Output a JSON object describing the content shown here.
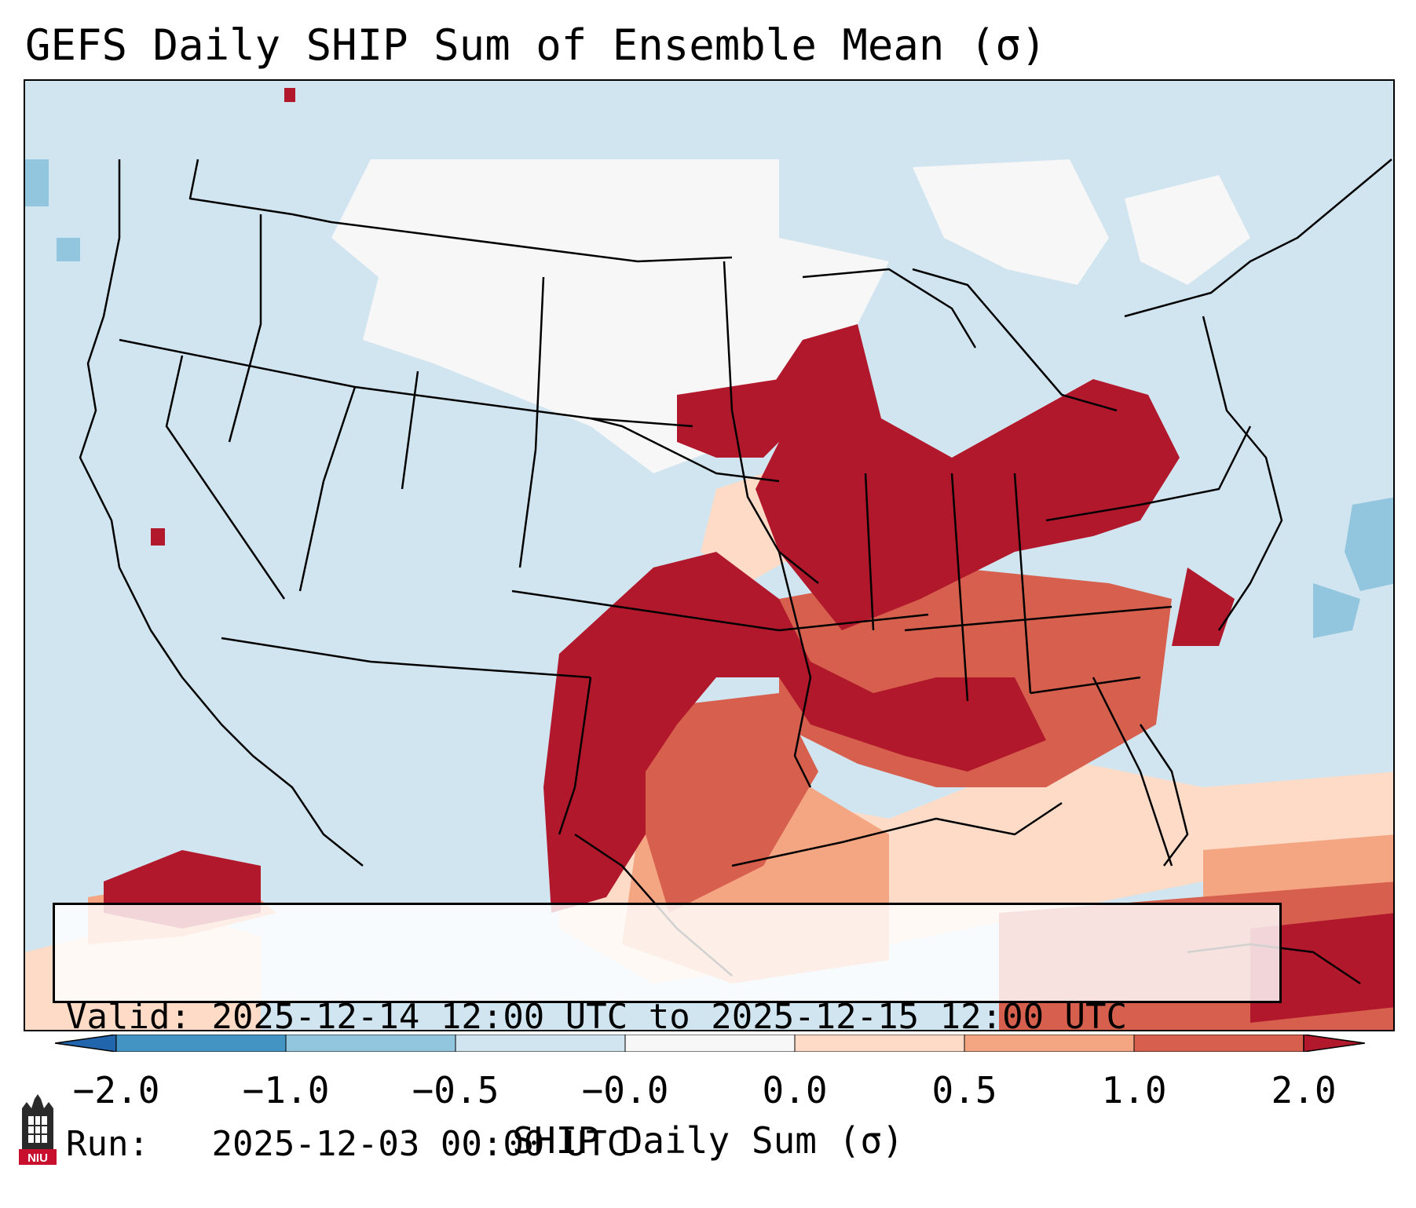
{
  "title": "GEFS Daily SHIP Sum of Ensemble Mean (σ)",
  "info": {
    "valid_label": "Valid:",
    "valid_value": "2025-12-14 12:00 UTC to 2025-12-15 12:00 UTC",
    "run_label": "Run:",
    "run_value": "2025-12-03 00:00 UTC"
  },
  "colorbar": {
    "label": "SHIP Daily Sum (σ)",
    "ticks": [
      "−2.0",
      "−1.0",
      "−0.5",
      "−0.0",
      "0.0",
      "0.5",
      "1.0",
      "2.0"
    ],
    "colors": [
      "#4393c3",
      "#92c5de",
      "#d1e5f0",
      "#f7f7f7",
      "#fddbc7",
      "#f4a582",
      "#d6604d",
      "#b2182b"
    ],
    "extend": "both"
  },
  "logo": {
    "text": "NIU",
    "color": "#c8102e"
  }
}
